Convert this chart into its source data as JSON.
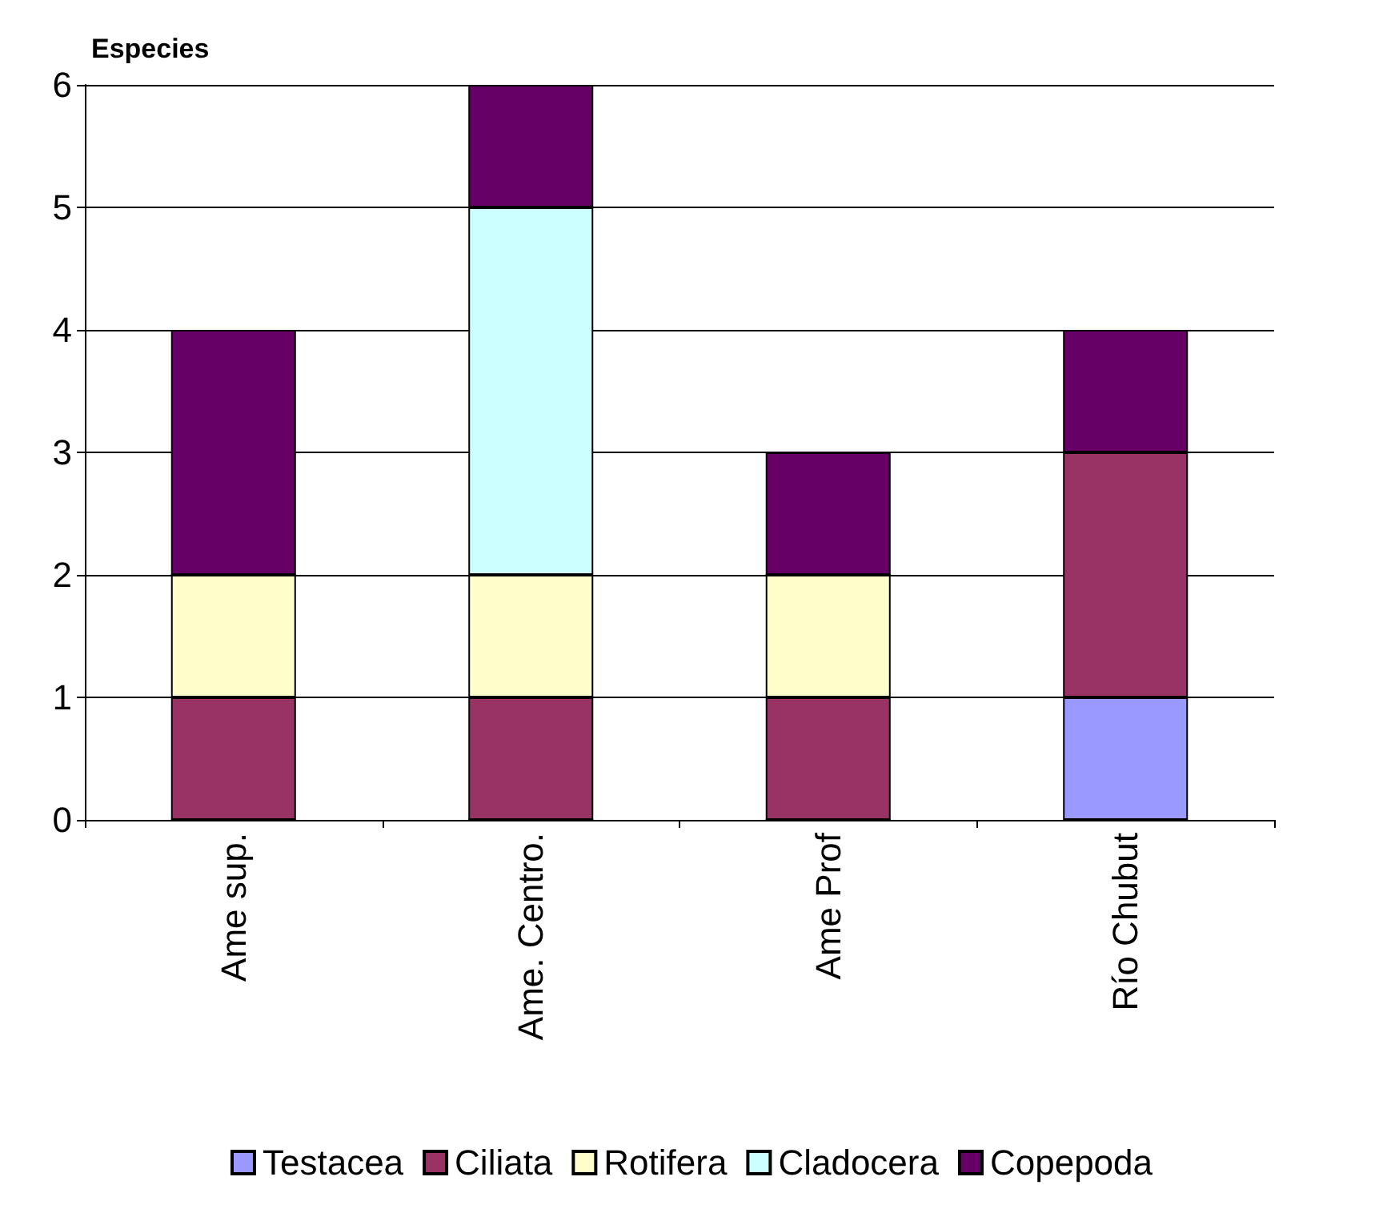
{
  "chart_data": {
    "type": "bar",
    "stacked": true,
    "ylabel": "Especies",
    "categories": [
      "Ame sup.",
      "Ame. Centro.",
      "Ame Prof",
      "Río Chubut"
    ],
    "series": [
      {
        "name": "Testacea",
        "color": "#9999ff",
        "values": [
          0,
          0,
          0,
          1
        ]
      },
      {
        "name": "Ciliata",
        "color": "#993366",
        "values": [
          1,
          1,
          1,
          2
        ]
      },
      {
        "name": "Rotifera",
        "color": "#ffffcc",
        "values": [
          1,
          1,
          1,
          0
        ]
      },
      {
        "name": "Cladocera",
        "color": "#ccffff",
        "values": [
          0,
          3,
          0,
          0
        ]
      },
      {
        "name": "Copepoda",
        "color": "#660066",
        "values": [
          2,
          1,
          1,
          1
        ]
      }
    ],
    "ylim": [
      0,
      6
    ],
    "yticks": [
      0,
      1,
      2,
      3,
      4,
      5,
      6
    ],
    "grid": "y",
    "legend": "bottom"
  }
}
